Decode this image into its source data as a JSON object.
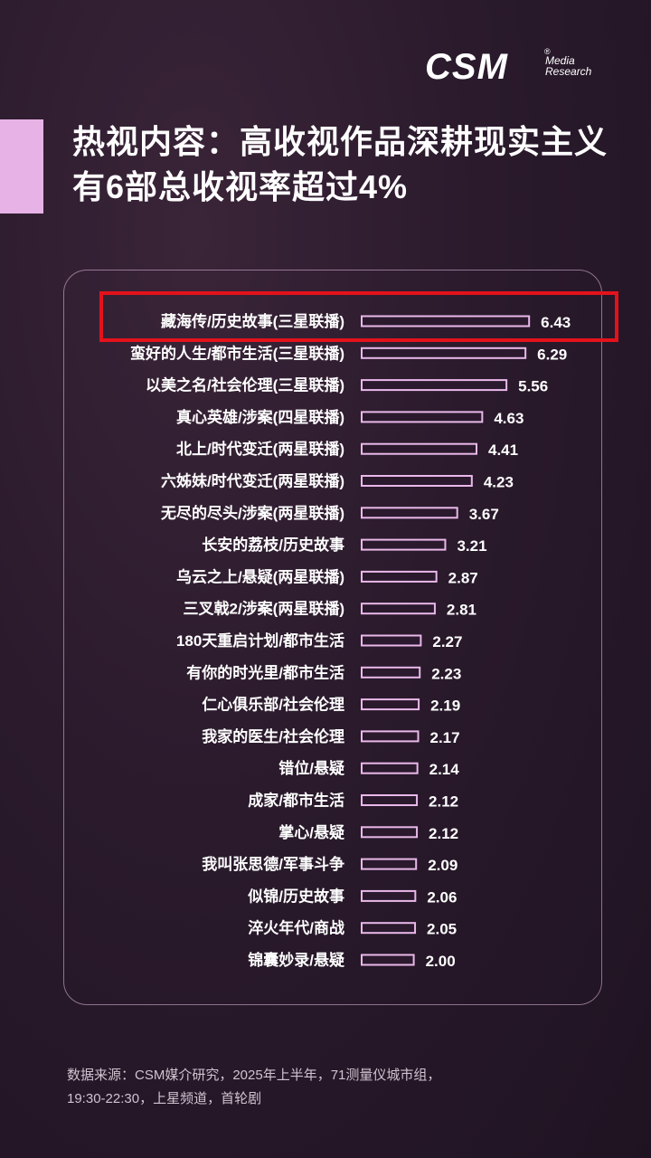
{
  "logo": {
    "main": "CSM",
    "registered": "®",
    "sub_line1": "Media",
    "sub_line2": "Research"
  },
  "title": {
    "line1": "热视内容：高收视作品深耕现实主义",
    "line2": "有6部总收视率超过4%"
  },
  "colors": {
    "bar_fill": "#2b1a2d",
    "bar_stroke": "#e9b8ea",
    "accent": "#e7b3e6",
    "highlight": "#e3121b",
    "background": "#2a1a2c"
  },
  "chart_data": {
    "type": "bar",
    "orientation": "horizontal",
    "categories": [
      "藏海传/历史故事(三星联播)",
      "蛮好的人生/都市生活(三星联播)",
      "以美之名/社会伦理(三星联播)",
      "真心英雄/涉案(四星联播)",
      "北上/时代变迁(两星联播)",
      "六姊妹/时代变迁(两星联播)",
      "无尽的尽头/涉案(两星联播)",
      "长安的荔枝/历史故事",
      "乌云之上/悬疑(两星联播)",
      "三叉戟2/涉案(两星联播)",
      "180天重启计划/都市生活",
      "有你的时光里/都市生活",
      "仁心俱乐部/社会伦理",
      "我家的医生/社会伦理",
      "错位/悬疑",
      "成家/都市生活",
      "掌心/悬疑",
      "我叫张思德/军事斗争",
      "似锦/历史故事",
      "淬火年代/商战",
      "锦囊妙录/悬疑"
    ],
    "values": [
      "6.43",
      "6.29",
      "5.56",
      "4.63",
      "4.41",
      "4.23",
      "3.67",
      "3.21",
      "2.87",
      "2.81",
      "2.27",
      "2.23",
      "2.19",
      "2.17",
      "2.14",
      "2.12",
      "2.12",
      "2.09",
      "2.06",
      "2.05",
      "2.00"
    ],
    "highlighted_index": 0,
    "grid": false,
    "legend": "none"
  },
  "footer": {
    "line1": "数据来源：CSM媒介研究，2025年上半年，71测量仪城市组，",
    "line2": "19:30-22:30，上星频道，首轮剧"
  }
}
